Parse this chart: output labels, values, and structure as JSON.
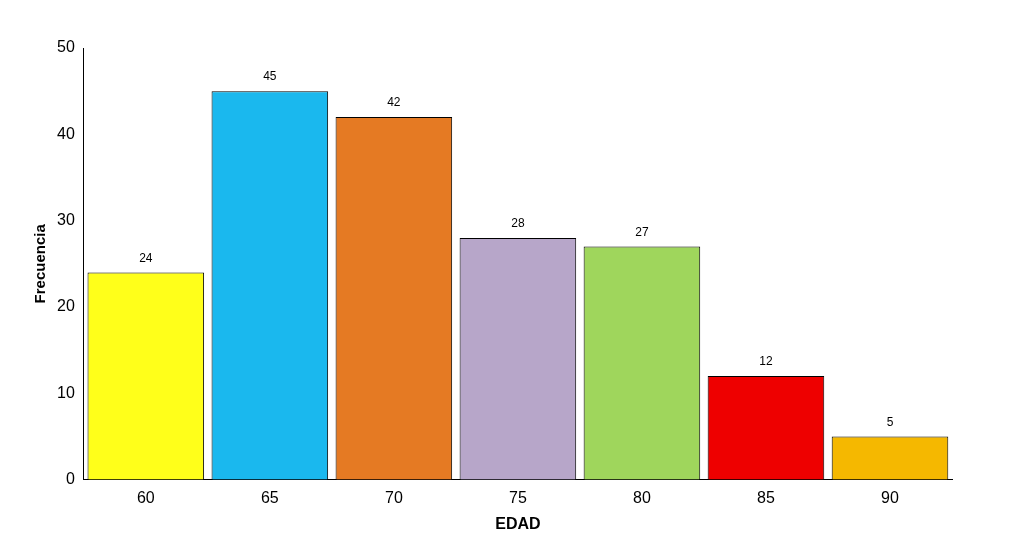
{
  "chart_data": {
    "type": "bar",
    "xlabel": "EDAD",
    "ylabel": "Frecuencia",
    "categories": [
      "60",
      "65",
      "70",
      "75",
      "80",
      "85",
      "90"
    ],
    "values": [
      24,
      45,
      42,
      28,
      27,
      12,
      5
    ],
    "colors": [
      "#ffff1a",
      "#1ab8ee",
      "#e57a23",
      "#b7a6c9",
      "#9fd65c",
      "#ee0000",
      "#f5b800"
    ],
    "ylim": [
      0,
      50
    ],
    "yticks": [
      0,
      10,
      20,
      30,
      40,
      50
    ],
    "grid": false,
    "legend": false,
    "data_labels": true
  }
}
